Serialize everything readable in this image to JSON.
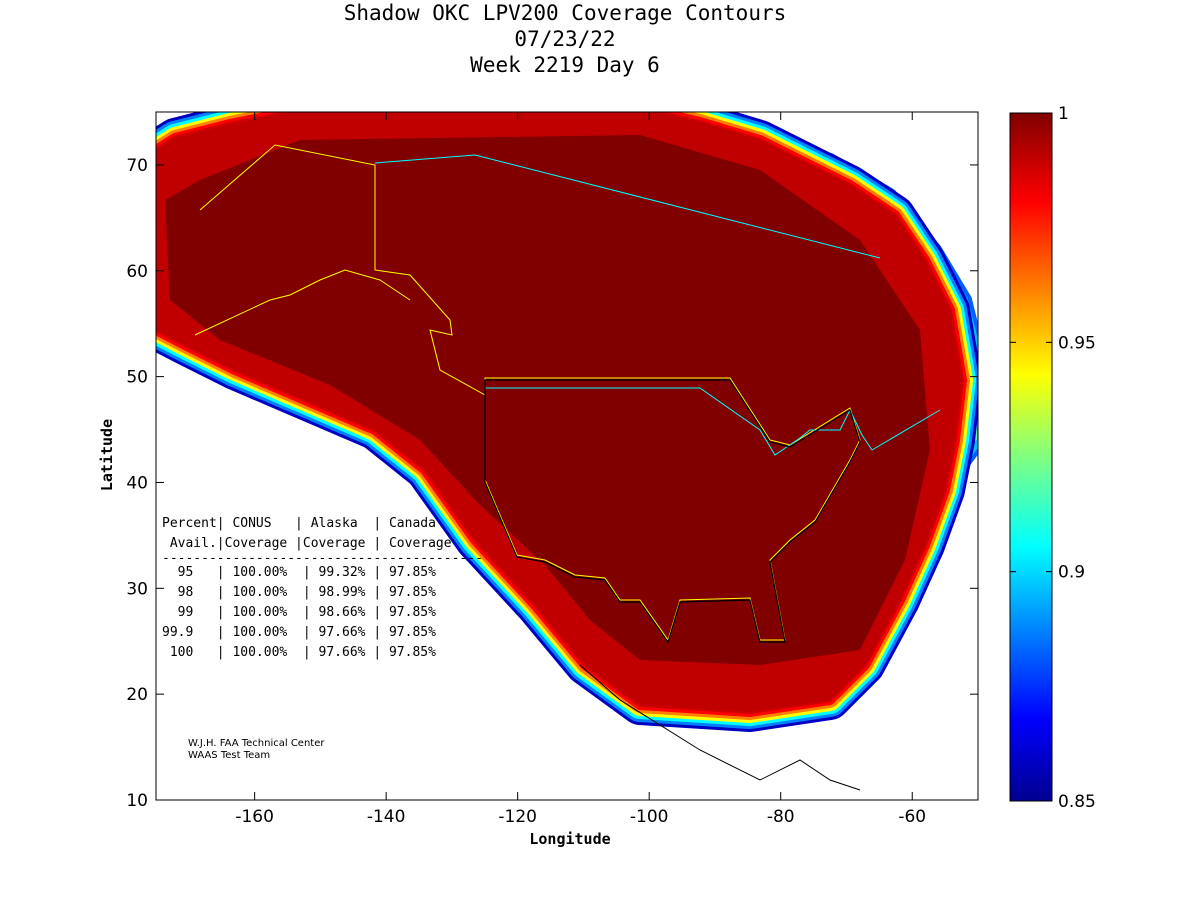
{
  "title": {
    "line1": "Shadow OKC LPV200 Coverage Contours",
    "line2": "07/23/22",
    "line3": "Week 2219 Day 6"
  },
  "axes": {
    "xlabel": "Longitude",
    "ylabel": "Latitude",
    "xlim": [
      -175,
      -50
    ],
    "ylim": [
      10,
      75
    ],
    "xticks": [
      "-160",
      "-140",
      "-120",
      "-100",
      "-80",
      "-60"
    ],
    "yticks": [
      "10",
      "20",
      "30",
      "40",
      "50",
      "60",
      "70"
    ]
  },
  "colorbar": {
    "range": [
      0.85,
      1
    ],
    "ticks": [
      "1",
      "0.95",
      "0.9",
      "0.85"
    ]
  },
  "table": {
    "header1": "Percent| CONUS   | Alaska  | Canada",
    "header2": " Avail.|Coverage |Coverage | Coverage",
    "separator": "-----------------------------------------",
    "rows": [
      "  95   | 100.00%  | 99.32% | 97.85%",
      "  98   | 100.00%  | 98.99% | 97.85%",
      "  99   | 100.00%  | 98.66% | 97.85%",
      "99.9   | 100.00%  | 97.66% | 97.85%",
      " 100   | 100.00%  | 97.66% | 97.85%"
    ]
  },
  "credit": {
    "line1": "W.J.H. FAA Technical Center",
    "line2": "WAAS Test Team"
  },
  "colors": {
    "max": "#800000",
    "border_us": "#ffff00",
    "border_ca": "#00ffff"
  }
}
